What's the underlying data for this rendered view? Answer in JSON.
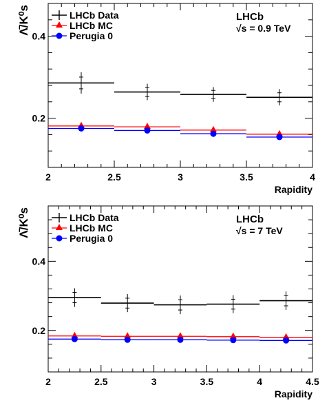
{
  "chart_data": [
    {
      "type": "scatter",
      "ylabel": "Λ̄/K⁰s",
      "xlabel": "Rapidity",
      "experiment": "LHCb",
      "energy_label": "√s = 0.9 TeV",
      "xlim": [
        2,
        4
      ],
      "ylim": [
        0.08,
        0.48
      ],
      "x_ticks": [
        "2",
        "2.5",
        "3",
        "3.5",
        "4"
      ],
      "y_ticks": [
        "0.2",
        "0.4"
      ],
      "legend": {
        "placement": "top-left"
      },
      "bins": [
        [
          2.0,
          2.5
        ],
        [
          2.5,
          3.0
        ],
        [
          3.0,
          3.5
        ],
        [
          3.5,
          4.0
        ]
      ],
      "series": [
        {
          "name": "LHCb Data",
          "marker": "cross",
          "color": "#000000",
          "y": [
            0.286,
            0.264,
            0.258,
            0.251
          ],
          "yerr": [
            0.026,
            0.02,
            0.018,
            0.02
          ]
        },
        {
          "name": "LHCb MC",
          "marker": "triangle",
          "color": "#ff0000",
          "y": [
            0.181,
            0.179,
            0.171,
            0.161
          ]
        },
        {
          "name": "Perugia 0",
          "marker": "circle",
          "color": "#0000ff",
          "y": [
            0.175,
            0.17,
            0.162,
            0.154
          ]
        }
      ]
    },
    {
      "type": "scatter",
      "ylabel": "Λ̄/K⁰s",
      "xlabel": "Rapidity",
      "experiment": "LHCb",
      "energy_label": "√s = 7 TeV",
      "xlim": [
        2,
        4.5
      ],
      "ylim": [
        0.08,
        0.56
      ],
      "x_ticks": [
        "2",
        "2.5",
        "3",
        "3.5",
        "4",
        "4.5"
      ],
      "y_ticks": [
        "0.2",
        "0.4"
      ],
      "legend": {
        "placement": "top-left"
      },
      "bins": [
        [
          2.0,
          2.5
        ],
        [
          2.5,
          3.0
        ],
        [
          3.0,
          3.5
        ],
        [
          3.5,
          4.0
        ],
        [
          4.0,
          4.5
        ]
      ],
      "series": [
        {
          "name": "LHCb Data",
          "marker": "cross",
          "color": "#000000",
          "y": [
            0.295,
            0.279,
            0.274,
            0.276,
            0.286
          ],
          "yerr": [
            0.027,
            0.026,
            0.027,
            0.026,
            0.027
          ]
        },
        {
          "name": "LHCb MC",
          "marker": "triangle",
          "color": "#ff0000",
          "y": [
            0.184,
            0.183,
            0.183,
            0.182,
            0.18
          ]
        },
        {
          "name": "Perugia 0",
          "marker": "circle",
          "color": "#0000ff",
          "y": [
            0.175,
            0.173,
            0.173,
            0.172,
            0.171
          ]
        }
      ]
    }
  ]
}
